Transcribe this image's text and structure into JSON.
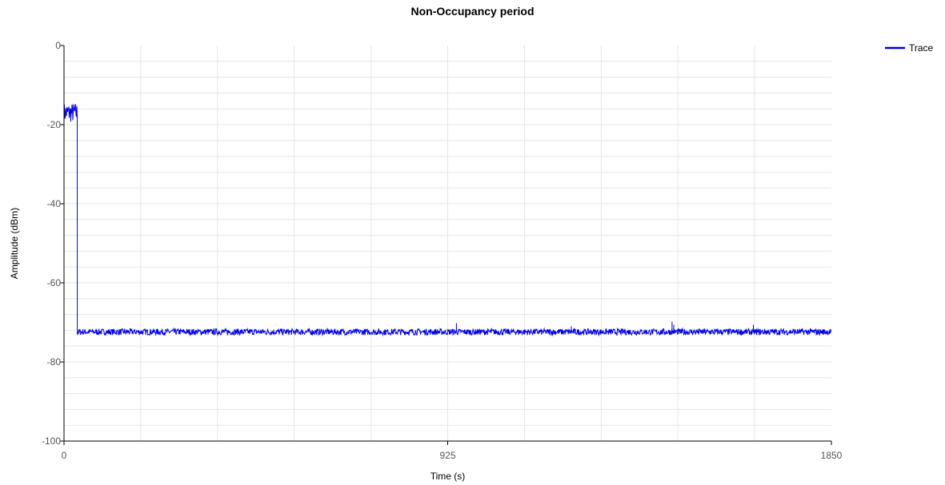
{
  "chart_data": {
    "type": "line",
    "title": "Non-Occupancy period",
    "xlabel": "Time (s)",
    "ylabel": "Amplitude (dBm)",
    "xlim": [
      0,
      1850
    ],
    "ylim": [
      -100,
      0
    ],
    "x_ticks": [
      0,
      925,
      1850
    ],
    "y_ticks": [
      0,
      -20,
      -40,
      -60,
      -80,
      -100
    ],
    "x_minor_grid_step": 185,
    "y_minor_grid_step": 4,
    "grid": true,
    "legend_position": "top-right",
    "series": [
      {
        "name": "Trace",
        "color": "#0000ee",
        "segments": [
          {
            "x_start": 0,
            "x_end": 32,
            "y_low": -19.5,
            "y_high": -14.5
          },
          {
            "x_start": 32,
            "x_end": 1850,
            "y_low": -73.2,
            "y_high": -71.6
          }
        ],
        "spikes": [
          {
            "x": 946,
            "y": -70.2
          },
          {
            "x": 1223,
            "y": -71.0
          },
          {
            "x": 1466,
            "y": -69.8
          },
          {
            "x": 1470,
            "y": -70.6
          },
          {
            "x": 1662,
            "y": -70.6
          }
        ]
      }
    ]
  }
}
